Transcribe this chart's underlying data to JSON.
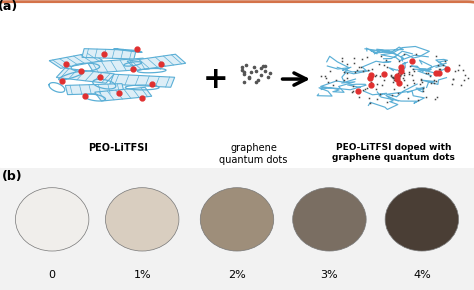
{
  "panel_a_label": "(a)",
  "panel_b_label": "(b)",
  "bg_color": "#f2f2f2",
  "box_color": "#d4734a",
  "box_bg": "#ffffff",
  "peo_label": "PEO-LiTFSI",
  "gqd_label": "graphene\nquantum dots",
  "doped_label": "PEO-LiTFSI doped with\ngraphene quantum dots",
  "blue_color": "#5bafd6",
  "red_dot_color": "#e03030",
  "black_dot_color": "#444444",
  "disk_labels": [
    "0",
    "1%",
    "2%",
    "3%",
    "4%"
  ],
  "disk_colors": [
    "#f0eeeb",
    "#d9cec0",
    "#9e8e7a",
    "#7a6e62",
    "#4a3e35"
  ],
  "disk_bg": "#c5bdb5"
}
